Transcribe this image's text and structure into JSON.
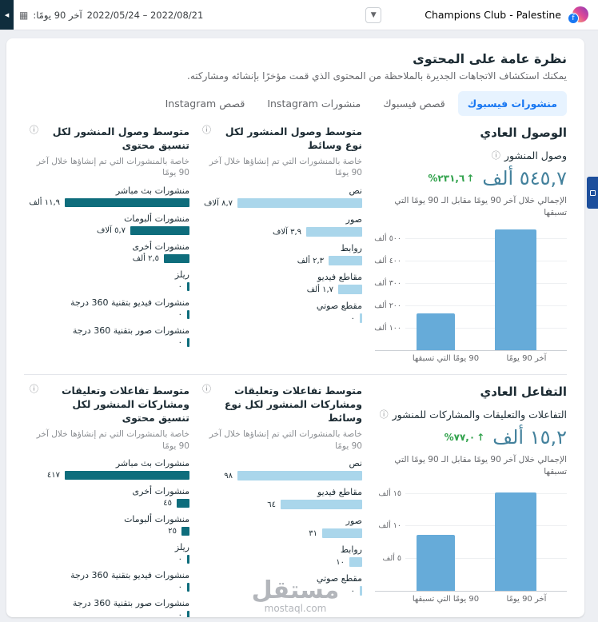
{
  "colors": {
    "accent_blue": "#1877f2",
    "tab_active_bg": "#e7f3ff",
    "metric_teal": "#43819c",
    "delta_green": "#31a24c",
    "vbar_blue": "#66abd9",
    "hbar_light": "#aad6eb",
    "hbar_dark": "#0e6d7c"
  },
  "icons": {
    "info": "ⓘ",
    "up_arrow": "↑",
    "chevron_down": "▼",
    "collapse": "◀",
    "calendar": "▦",
    "facebook_f": "f"
  },
  "topbar": {
    "page_name": "Champions Club - Palestine",
    "date_label": "آخر 90 يومًا:",
    "date_value": "2022/05/24 – 2022/08/21"
  },
  "header": {
    "title": "نظرة عامة على المحتوى",
    "subtitle": "يمكنك استكشاف الاتجاهات الجديرة بالملاحظة من المحتوى الذي قمت مؤخرًا بإنشائه ومشاركته."
  },
  "tabs": [
    {
      "label": "منشورات فيسبوك",
      "active": true
    },
    {
      "label": "قصص فيسبوك",
      "active": false
    },
    {
      "label": "منشورات Instagram",
      "active": false
    },
    {
      "label": "قصص Instagram",
      "active": false
    }
  ],
  "sections": {
    "reach": {
      "title": "الوصول العادي",
      "metric_label": "وصول المنشور",
      "value": "٥٤٥,٧ ألف",
      "delta": "٢٣١,٦%",
      "compare_note": "الإجمالي خلال آخر 90 يومًا مقابل الـ 90 يومًا التي تسبقها",
      "chart": {
        "type": "bar",
        "categories": [
          "90 يومًا التي تسبقها",
          "آخر 90 يومًا"
        ],
        "values": [
          164600,
          545700
        ],
        "bars_pct": [
          30,
          99
        ],
        "ticks": [
          {
            "label": "٥٠٠ ألف",
            "value": 500000,
            "pct": 91
          },
          {
            "label": "٤٠٠ ألف",
            "value": 400000,
            "pct": 72.7
          },
          {
            "label": "٣٠٠ ألف",
            "value": 300000,
            "pct": 54.5
          },
          {
            "label": "٢٠٠ ألف",
            "value": 200000,
            "pct": 36.4
          },
          {
            "label": "١٠٠ ألف",
            "value": 100000,
            "pct": 18.2
          }
        ]
      },
      "by_media": {
        "title": "متوسط وصول المنشور لكل نوع وسائط",
        "subtitle": "خاصة بالمنشورات التي تم إنشاؤها خلال آخر 90 يومًا",
        "rows": [
          {
            "label": "نص",
            "value": 8700,
            "value_label": "٨,٧ آلاف",
            "pct": 78
          },
          {
            "label": "صور",
            "value": 3900,
            "value_label": "٣,٩ آلاف",
            "pct": 35
          },
          {
            "label": "روابط",
            "value": 2300,
            "value_label": "٢,٣ ألف",
            "pct": 21
          },
          {
            "label": "مقاطع فيديو",
            "value": 1700,
            "value_label": "١,٧ ألف",
            "pct": 15
          },
          {
            "label": "مقطع صوتي",
            "value": 0,
            "value_label": "٠",
            "pct": 1.5
          }
        ]
      },
      "by_format": {
        "title": "متوسط وصول المنشور لكل تنسيق محتوى",
        "subtitle": "خاصة بالمنشورات التي تم إنشاؤها خلال آخر 90 يومًا",
        "rows": [
          {
            "label": "منشورات بث مباشر",
            "value": 11900,
            "value_label": "١١,٩ ألف",
            "pct": 78
          },
          {
            "label": "منشورات ألبومات",
            "value": 5700,
            "value_label": "٥,٧ آلاف",
            "pct": 37
          },
          {
            "label": "منشورات أخرى",
            "value": 2500,
            "value_label": "٢,٥ ألف",
            "pct": 16
          },
          {
            "label": "ريلز",
            "value": 0,
            "value_label": "٠",
            "pct": 1.5
          },
          {
            "label": "منشورات فيديو بتقنية 360 درجة",
            "value": 0,
            "value_label": "٠",
            "pct": 1.5
          },
          {
            "label": "منشورات صور بتقنية 360 درجة",
            "value": 0,
            "value_label": "٠",
            "pct": 1.5
          }
        ]
      }
    },
    "engagement": {
      "title": "التفاعل العادي",
      "metric_label": "التفاعلات والتعليقات والمشاركات للمنشور",
      "value": "١٥,٢ ألف",
      "delta": "٧٧,٠%",
      "compare_note": "الإجمالي خلال آخر 90 يومًا مقابل الـ 90 يومًا التي تسبقها",
      "chart": {
        "type": "bar",
        "categories": [
          "90 يومًا التي تسبقها",
          "آخر 90 يومًا"
        ],
        "values": [
          8600,
          15200
        ],
        "bars_pct": [
          54,
          95
        ],
        "ticks": [
          {
            "label": "١٥ ألف",
            "value": 15000,
            "pct": 94
          },
          {
            "label": "١٠ ألف",
            "value": 10000,
            "pct": 62.5
          },
          {
            "label": "٥ ألف",
            "value": 5000,
            "pct": 31
          }
        ]
      },
      "by_media": {
        "title": "متوسط تفاعلات وتعليقات ومشاركات المنشور لكل نوع وسائط",
        "subtitle": "خاصة بالمنشورات التي تم إنشاؤها خلال آخر 90 يومًا",
        "rows": [
          {
            "label": "نص",
            "value": 98,
            "value_label": "٩٨",
            "pct": 78
          },
          {
            "label": "مقاطع فيديو",
            "value": 64,
            "value_label": "٦٤",
            "pct": 51
          },
          {
            "label": "صور",
            "value": 31,
            "value_label": "٣١",
            "pct": 25
          },
          {
            "label": "روابط",
            "value": 10,
            "value_label": "١٠",
            "pct": 8
          },
          {
            "label": "مقطع صوتي",
            "value": 0,
            "value_label": "٠",
            "pct": 1.5
          }
        ]
      },
      "by_format": {
        "title": "متوسط تفاعلات وتعليقات ومشاركات المنشور لكل تنسيق محتوى",
        "subtitle": "خاصة بالمنشورات التي تم إنشاؤها خلال آخر 90 يومًا",
        "rows": [
          {
            "label": "منشورات بث مباشر",
            "value": 417,
            "value_label": "٤١٧",
            "pct": 78
          },
          {
            "label": "منشورات أخرى",
            "value": 45,
            "value_label": "٤٥",
            "pct": 8
          },
          {
            "label": "منشورات ألبومات",
            "value": 25,
            "value_label": "٢٥",
            "pct": 5
          },
          {
            "label": "ريلز",
            "value": 0,
            "value_label": "٠",
            "pct": 1.5
          },
          {
            "label": "منشورات فيديو بتقنية 360 درجة",
            "value": 0,
            "value_label": "٠",
            "pct": 1.5
          },
          {
            "label": "منشورات صور بتقنية 360 درجة",
            "value": 0,
            "value_label": "٠",
            "pct": 1.5
          }
        ]
      }
    }
  },
  "watermark": {
    "name": "مستقل",
    "url": "mostaql.com"
  }
}
